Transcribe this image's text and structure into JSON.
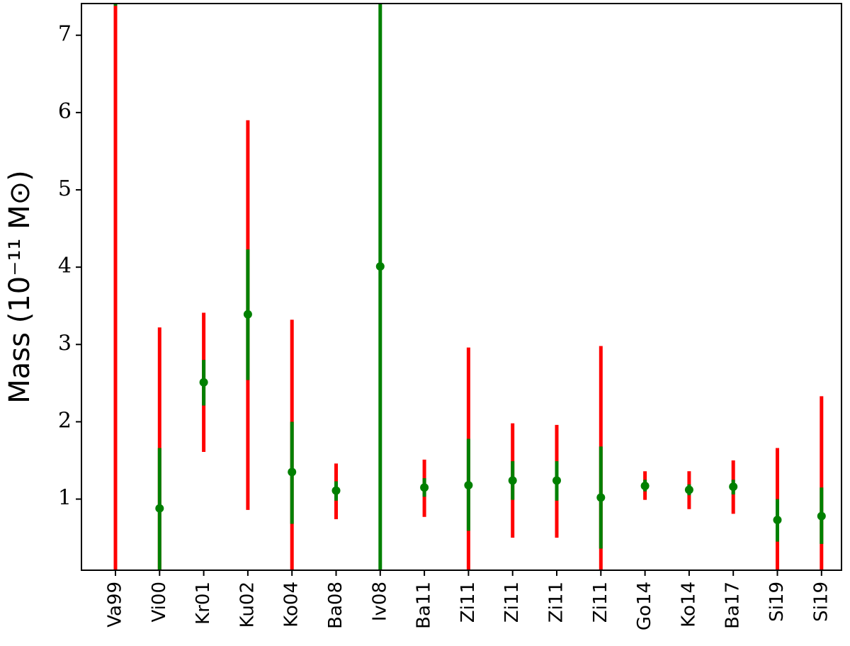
{
  "chart_data": {
    "type": "errorbar",
    "y_label": "Mass (10⁻¹¹ M⊙)",
    "categories": [
      "Va99",
      "Vi00",
      "Kr01",
      "Ku02",
      "Ko04",
      "Ba08",
      "Iv08",
      "Ba11",
      "Zi11",
      "Zi11",
      "Zi11",
      "Zi11",
      "Go14",
      "Ko14",
      "Ba17",
      "Si19",
      "Si19"
    ],
    "values": [
      null,
      0.88,
      2.51,
      3.39,
      1.35,
      1.11,
      4.01,
      1.15,
      1.18,
      1.24,
      1.24,
      1.02,
      1.17,
      1.12,
      1.16,
      0.73,
      0.78
    ],
    "inner_low": [
      7.38,
      0.08,
      2.21,
      2.54,
      0.68,
      0.98,
      0.08,
      1.03,
      0.59,
      0.99,
      0.98,
      0.36,
      1.1,
      1.05,
      1.06,
      0.45,
      0.42
    ],
    "inner_high": [
      7.45,
      1.66,
      2.8,
      4.23,
      2.0,
      1.23,
      7.41,
      1.27,
      1.78,
      1.49,
      1.49,
      1.68,
      1.25,
      1.19,
      1.25,
      1.0,
      1.15
    ],
    "outer_low": [
      0.08,
      0.08,
      1.61,
      0.86,
      0.08,
      0.74,
      null,
      0.77,
      0.08,
      0.5,
      0.5,
      0.08,
      0.99,
      0.87,
      0.81,
      0.08,
      0.08
    ],
    "outer_high": [
      7.45,
      3.22,
      3.41,
      5.9,
      3.32,
      1.46,
      null,
      1.51,
      2.96,
      1.98,
      1.96,
      2.98,
      1.36,
      1.36,
      1.5,
      1.66,
      2.33
    ],
    "inner_color": "#008000",
    "outer_color": "#ff0000",
    "point_color": "#008000",
    "ylim": [
      0.08,
      7.41
    ],
    "yticks": [
      1,
      2,
      3,
      4,
      5,
      6,
      7
    ]
  }
}
